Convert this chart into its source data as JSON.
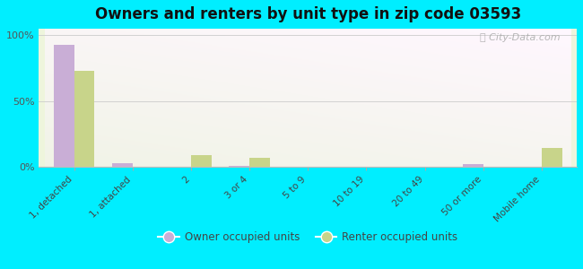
{
  "title": "Owners and renters by unit type in zip code 03593",
  "categories": [
    "1, detached",
    "1, attached",
    "2",
    "3 or 4",
    "5 to 9",
    "10 to 19",
    "20 to 49",
    "50 or more",
    "Mobile home"
  ],
  "owner_values": [
    93,
    3,
    0,
    1,
    0,
    0,
    0,
    2,
    0
  ],
  "renter_values": [
    73,
    0,
    9,
    7,
    0,
    0,
    0,
    0,
    14
  ],
  "owner_color": "#c9aed6",
  "renter_color": "#c8d48a",
  "background_color": "#00eeff",
  "ylabel": "",
  "ylim": [
    0,
    105
  ],
  "yticks": [
    0,
    50,
    100
  ],
  "ytick_labels": [
    "0%",
    "50%",
    "100%"
  ],
  "watermark": "ⓘ City-Data.com",
  "legend_owner": "Owner occupied units",
  "legend_renter": "Renter occupied units",
  "bar_width": 0.35
}
